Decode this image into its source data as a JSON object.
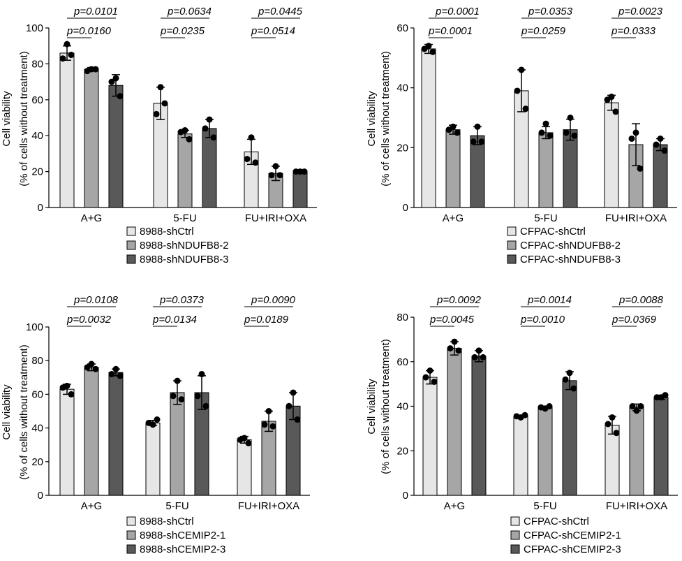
{
  "colors": {
    "ctrl": "#e6e6e6",
    "kd1": "#a6a6a6",
    "kd2": "#595959",
    "dot": "#000000"
  },
  "chart_data": [
    {
      "type": "bar",
      "ylabel": [
        "Cell viability",
        "(% of cells without treatment)"
      ],
      "ylim": [
        0,
        100
      ],
      "yticks": [
        0,
        20,
        40,
        60,
        80,
        100
      ],
      "categories": [
        "A+G",
        "5-FU",
        "FU+IRI+OXA"
      ],
      "series": [
        {
          "name": "8988-shCtrl",
          "values": [
            86,
            58,
            31
          ],
          "errors": [
            4,
            9,
            7
          ],
          "points": [
            [
              91,
              85,
              83
            ],
            [
              67,
              58,
              52
            ],
            [
              39,
              25,
              27
            ]
          ]
        },
        {
          "name": "8988-shNDUFB8-2",
          "values": [
            77,
            41,
            19
          ],
          "errors": [
            1,
            2,
            4
          ],
          "points": [
            [
              77,
              77,
              76
            ],
            [
              43,
              38,
              42
            ],
            [
              23,
              18,
              18
            ]
          ]
        },
        {
          "name": "8988-shNDUFB8-3",
          "values": [
            68,
            44,
            20
          ],
          "errors": [
            6,
            5,
            1
          ],
          "points": [
            [
              72,
              62,
              70
            ],
            [
              49,
              39,
              44
            ],
            [
              20,
              20,
              20
            ]
          ]
        }
      ],
      "pvalues": {
        "top": [
          "p=0.0101",
          "p=0.0634",
          "p=0.0445"
        ],
        "bottom": [
          "p=0.0160",
          "p=0.0235",
          "p=0.0514"
        ]
      }
    },
    {
      "type": "bar",
      "ylabel": [
        "Cell viability",
        "(% of cells without treatment)"
      ],
      "ylim": [
        0,
        60
      ],
      "yticks": [
        0,
        20,
        40,
        60
      ],
      "categories": [
        "A+G",
        "5-FU",
        "FU+IRI+OXA"
      ],
      "series": [
        {
          "name": "CFPAC-shCtrl",
          "values": [
            53,
            39,
            35
          ],
          "errors": [
            1.5,
            7,
            2.5
          ],
          "points": [
            [
              54,
              52,
              53
            ],
            [
              46,
              33,
              39
            ],
            [
              37,
              32,
              36
            ]
          ]
        },
        {
          "name": "CFPAC-shNDUFB8-2",
          "values": [
            26,
            25,
            21
          ],
          "errors": [
            1.5,
            2,
            7
          ],
          "points": [
            [
              27,
              25,
              26
            ],
            [
              28,
              24,
              25
            ],
            [
              25,
              13,
              23
            ]
          ]
        },
        {
          "name": "CFPAC-shNDUFB8-3",
          "values": [
            24,
            26,
            21
          ],
          "errors": [
            3,
            3.5,
            2
          ],
          "points": [
            [
              27,
              22,
              22
            ],
            [
              30,
              24,
              25
            ],
            [
              23,
              19,
              21
            ]
          ]
        }
      ],
      "pvalues": {
        "top": [
          "p=0.0001",
          "p=0.0353",
          "p=0.0023"
        ],
        "bottom": [
          "p=0.0001",
          "p=0.0259",
          "p=0.0333"
        ]
      }
    },
    {
      "type": "bar",
      "ylabel": [
        "Cell viability",
        "(% of cells without treatment)"
      ],
      "ylim": [
        0,
        100
      ],
      "yticks": [
        0,
        20,
        40,
        60,
        80,
        100
      ],
      "categories": [
        "A+G",
        "5-FU",
        "FU+IRI+OXA"
      ],
      "series": [
        {
          "name": "8988-shCtrl",
          "values": [
            63,
            43,
            33
          ],
          "errors": [
            3,
            1.5,
            2
          ],
          "points": [
            [
              65,
              60,
              64
            ],
            [
              42,
              45,
              43
            ],
            [
              34,
              31,
              33
            ]
          ]
        },
        {
          "name": "8988-shCEMIP2-1",
          "values": [
            76,
            61,
            44
          ],
          "errors": [
            2,
            7,
            6
          ],
          "points": [
            [
              78,
              75,
              76
            ],
            [
              68,
              57,
              59
            ],
            [
              50,
              41,
              42
            ]
          ]
        },
        {
          "name": "8988-shCEMIP2-3",
          "values": [
            73,
            61,
            53
          ],
          "errors": [
            2,
            10,
            8
          ],
          "points": [
            [
              75,
              71,
              72
            ],
            [
              72,
              53,
              59
            ],
            [
              61,
              45,
              53
            ]
          ]
        }
      ],
      "pvalues": {
        "top": [
          "p=0.0108",
          "p=0.0373",
          "p=0.0090"
        ],
        "bottom": [
          "p=0.0032",
          "p=0.0134",
          "p=0.0189"
        ]
      }
    },
    {
      "type": "bar",
      "ylabel": [
        "Cell viability",
        "(% of cells without treatment)"
      ],
      "ylim": [
        0,
        80
      ],
      "yticks": [
        0,
        20,
        40,
        60,
        80
      ],
      "categories": [
        "A+G",
        "5-FU",
        "FU+IRI+OXA"
      ],
      "series": [
        {
          "name": "CFPAC-shCtrl",
          "values": [
            53,
            35.5,
            31.5
          ],
          "errors": [
            3,
            0.5,
            4
          ],
          "points": [
            [
              56,
              51,
              53
            ],
            [
              35,
              36,
              35.5
            ],
            [
              35,
              28,
              32
            ]
          ]
        },
        {
          "name": "CFPAC-shCEMIP2-1",
          "values": [
            66,
            39.5,
            39.5
          ],
          "errors": [
            3,
            0.5,
            1.5
          ],
          "points": [
            [
              69,
              65,
              66
            ],
            [
              39,
              40,
              39.5
            ],
            [
              38,
              40,
              40
            ]
          ]
        },
        {
          "name": "CFPAC-shCEMIP2-3",
          "values": [
            62.5,
            51.5,
            44
          ],
          "errors": [
            2.5,
            4,
            1
          ],
          "points": [
            [
              65,
              62,
              62
            ],
            [
              55,
              48,
              52
            ],
            [
              44,
              45,
              44
            ]
          ]
        }
      ],
      "pvalues": {
        "top": [
          "p=0.0092",
          "p=0.0014",
          "p=0.0088"
        ],
        "bottom": [
          "p=0.0045",
          "p=0.0010",
          "p=0.0369"
        ]
      }
    }
  ]
}
